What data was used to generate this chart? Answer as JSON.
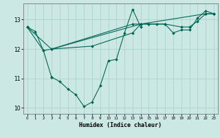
{
  "title": "",
  "xlabel": "Humidex (Indice chaleur)",
  "ylabel": "",
  "bg_color": "#cce8e4",
  "grid_color": "#aad4cc",
  "line_color": "#006655",
  "xlim": [
    -0.5,
    23.5
  ],
  "ylim": [
    9.8,
    13.55
  ],
  "yticks": [
    10,
    11,
    12,
    13
  ],
  "xticks": [
    0,
    1,
    2,
    3,
    4,
    5,
    6,
    7,
    8,
    9,
    10,
    11,
    12,
    13,
    14,
    15,
    16,
    17,
    18,
    19,
    20,
    21,
    22,
    23
  ],
  "lines": [
    {
      "x": [
        0,
        1,
        2,
        3
      ],
      "y": [
        12.75,
        12.6,
        11.95,
        11.05
      ]
    },
    {
      "x": [
        3,
        4,
        5,
        6,
        7,
        8,
        9,
        10,
        11,
        12,
        13,
        14
      ],
      "y": [
        11.05,
        10.9,
        10.65,
        10.45,
        10.05,
        10.2,
        10.75,
        11.6,
        11.65,
        12.55,
        13.35,
        12.75
      ]
    },
    {
      "x": [
        0,
        3,
        8,
        13,
        14,
        15,
        16,
        17,
        18,
        19,
        20,
        21,
        22,
        23
      ],
      "y": [
        12.75,
        12.0,
        12.1,
        12.55,
        12.85,
        12.85,
        12.85,
        12.85,
        12.55,
        12.65,
        12.65,
        13.05,
        13.3,
        13.2
      ]
    },
    {
      "x": [
        0,
        2,
        3,
        13,
        14,
        15,
        17,
        19,
        20,
        21,
        22,
        23
      ],
      "y": [
        12.75,
        11.95,
        12.0,
        12.85,
        12.85,
        12.85,
        12.85,
        12.75,
        12.75,
        12.95,
        13.2,
        13.2
      ]
    },
    {
      "x": [
        3,
        14,
        22,
        23
      ],
      "y": [
        12.0,
        12.85,
        13.2,
        13.2
      ]
    }
  ]
}
